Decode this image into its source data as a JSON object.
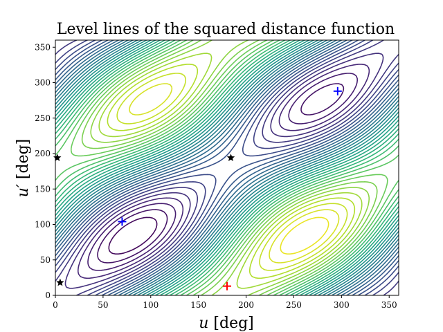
{
  "chart_data": {
    "type": "contour",
    "title": "Level lines of the squared distance function",
    "xlabel_var": "u",
    "xlabel_unit": "[deg]",
    "ylabel_var": "u′",
    "ylabel_unit": "[deg]",
    "xlim": [
      0,
      360
    ],
    "ylim": [
      0,
      360
    ],
    "xticks": [
      0,
      50,
      100,
      150,
      200,
      250,
      300,
      350
    ],
    "yticks": [
      0,
      50,
      100,
      150,
      200,
      250,
      300,
      350
    ],
    "xtick_labels": [
      "0",
      "50",
      "100",
      "150",
      "200",
      "250",
      "300",
      "350"
    ],
    "ytick_labels": [
      "0",
      "50",
      "100",
      "150",
      "200",
      "250",
      "300",
      "350"
    ],
    "colormap": "viridis",
    "grid": false,
    "markers": [
      {
        "type": "plus",
        "color": "#0000ff",
        "x": 70,
        "y": 104
      },
      {
        "type": "plus",
        "color": "#0000ff",
        "x": 296,
        "y": 288
      },
      {
        "type": "plus",
        "color": "#ff0000",
        "x": 180,
        "y": 13
      },
      {
        "type": "star",
        "color": "#000000",
        "x": 2,
        "y": 194
      },
      {
        "type": "star",
        "color": "#000000",
        "x": 184,
        "y": 194
      },
      {
        "type": "star",
        "color": "#000000",
        "x": 5,
        "y": 18
      }
    ]
  }
}
